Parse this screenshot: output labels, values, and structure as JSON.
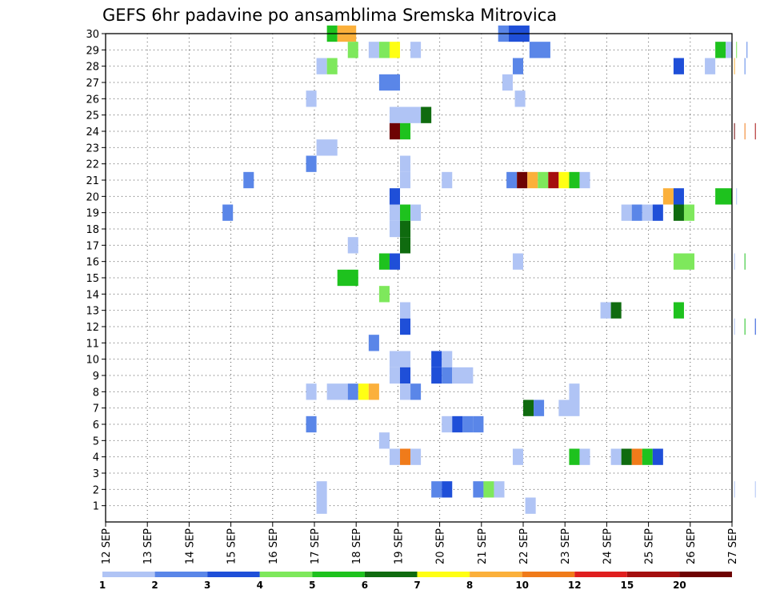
{
  "chart_data": {
    "type": "heatmap",
    "title": "GEFS 6hr padavine po ansamblima Sremska Mitrovica",
    "y_ticks": [
      "1",
      "2",
      "3",
      "4",
      "5",
      "6",
      "7",
      "8",
      "9",
      "10",
      "11",
      "12",
      "13",
      "14",
      "15",
      "16",
      "17",
      "18",
      "19",
      "20",
      "21",
      "22",
      "23",
      "24",
      "25",
      "26",
      "27",
      "28",
      "29",
      "30"
    ],
    "x_ticks": [
      "12 SEP",
      "13 SEP",
      "14 SEP",
      "15 SEP",
      "16 SEP",
      "17 SEP",
      "18 SEP",
      "19 SEP",
      "20 SEP",
      "21 SEP",
      "22 SEP",
      "23 SEP",
      "24 SEP",
      "25 SEP",
      "26 SEP",
      "27 SEP"
    ],
    "legend": {
      "labels": [
        "1",
        "2",
        "3",
        "4",
        "5",
        "6",
        "7",
        "8",
        "10",
        "12",
        "15",
        "20"
      ],
      "colors": [
        "#b0c4f5",
        "#5a86e8",
        "#1f4fd8",
        "#7ee85c",
        "#1ec21e",
        "#0f6b0f",
        "#ffff14",
        "#fbb03b",
        "#f07b1a",
        "#e01f1f",
        "#a50f0f",
        "#6e0303"
      ]
    },
    "grid": true,
    "cells": [
      {
        "member": 30,
        "x": 17.3,
        "w": 0.25,
        "v": 5
      },
      {
        "member": 30,
        "x": 17.55,
        "w": 0.45,
        "v": 8
      },
      {
        "member": 30,
        "x": 21.4,
        "w": 0.25,
        "v": 2
      },
      {
        "member": 30,
        "x": 21.65,
        "w": 0.5,
        "v": 3
      },
      {
        "member": 29,
        "x": 17.8,
        "w": 0.25,
        "v": 4
      },
      {
        "member": 29,
        "x": 18.3,
        "w": 0.25,
        "v": 1
      },
      {
        "member": 29,
        "x": 18.55,
        "w": 0.25,
        "v": 4
      },
      {
        "member": 29,
        "x": 18.8,
        "w": 0.25,
        "v": 7
      },
      {
        "member": 29,
        "x": 19.3,
        "w": 0.25,
        "v": 1
      },
      {
        "member": 29,
        "x": 22.15,
        "w": 0.5,
        "v": 2
      },
      {
        "member": 29,
        "x": 26.6,
        "w": 0.25,
        "v": 5
      },
      {
        "member": 29,
        "x": 26.85,
        "w": 0.25,
        "v": 1
      },
      {
        "member": 29,
        "x": 27.1,
        "w": 0.25,
        "v": 4
      },
      {
        "member": 29,
        "x": 27.35,
        "w": 0.1,
        "v": 2
      },
      {
        "member": 28,
        "x": 17.05,
        "w": 0.25,
        "v": 1
      },
      {
        "member": 28,
        "x": 17.3,
        "w": 0.25,
        "v": 4
      },
      {
        "member": 28,
        "x": 21.75,
        "w": 0.25,
        "v": 2
      },
      {
        "member": 28,
        "x": 25.6,
        "w": 0.25,
        "v": 3
      },
      {
        "member": 28,
        "x": 26.35,
        "w": 0.25,
        "v": 1
      },
      {
        "member": 28,
        "x": 27.05,
        "w": 0.25,
        "v": 8
      },
      {
        "member": 28,
        "x": 27.3,
        "w": 0.2,
        "v": 2
      },
      {
        "member": 27,
        "x": 18.55,
        "w": 0.5,
        "v": 2
      },
      {
        "member": 27,
        "x": 21.5,
        "w": 0.25,
        "v": 1
      },
      {
        "member": 26,
        "x": 16.8,
        "w": 0.25,
        "v": 1
      },
      {
        "member": 26,
        "x": 21.8,
        "w": 0.25,
        "v": 1
      },
      {
        "member": 25,
        "x": 18.8,
        "w": 0.75,
        "v": 1
      },
      {
        "member": 25,
        "x": 19.55,
        "w": 0.25,
        "v": 6
      },
      {
        "member": 24,
        "x": 18.8,
        "w": 0.25,
        "v": 20
      },
      {
        "member": 24,
        "x": 19.05,
        "w": 0.25,
        "v": 5
      },
      {
        "member": 24,
        "x": 27.05,
        "w": 0.25,
        "v": 20
      },
      {
        "member": 24,
        "x": 27.3,
        "w": 0.25,
        "v": 10
      },
      {
        "member": 24,
        "x": 27.55,
        "w": 0.4,
        "v": 15
      },
      {
        "member": 23,
        "x": 17.05,
        "w": 0.5,
        "v": 1
      },
      {
        "member": 22,
        "x": 16.8,
        "w": 0.25,
        "v": 2
      },
      {
        "member": 22,
        "x": 19.05,
        "w": 0.25,
        "v": 1
      },
      {
        "member": 21,
        "x": 15.3,
        "w": 0.25,
        "v": 2
      },
      {
        "member": 21,
        "x": 19.05,
        "w": 0.25,
        "v": 1
      },
      {
        "member": 21,
        "x": 20.05,
        "w": 0.25,
        "v": 1
      },
      {
        "member": 21,
        "x": 21.6,
        "w": 0.25,
        "v": 2
      },
      {
        "member": 21,
        "x": 21.85,
        "w": 0.25,
        "v": 20
      },
      {
        "member": 21,
        "x": 22.1,
        "w": 0.25,
        "v": 8
      },
      {
        "member": 21,
        "x": 22.35,
        "w": 0.25,
        "v": 4
      },
      {
        "member": 21,
        "x": 22.6,
        "w": 0.25,
        "v": 15
      },
      {
        "member": 21,
        "x": 22.85,
        "w": 0.25,
        "v": 7
      },
      {
        "member": 21,
        "x": 23.1,
        "w": 0.25,
        "v": 5
      },
      {
        "member": 21,
        "x": 23.35,
        "w": 0.25,
        "v": 1
      },
      {
        "member": 20,
        "x": 18.8,
        "w": 0.25,
        "v": 3
      },
      {
        "member": 20,
        "x": 25.35,
        "w": 0.25,
        "v": 8
      },
      {
        "member": 20,
        "x": 25.6,
        "w": 0.25,
        "v": 3
      },
      {
        "member": 20,
        "x": 26.6,
        "w": 0.5,
        "v": 5
      },
      {
        "member": 20,
        "x": 27.1,
        "w": 0.25,
        "v": 1
      },
      {
        "member": 19,
        "x": 14.8,
        "w": 0.25,
        "v": 2
      },
      {
        "member": 19,
        "x": 18.8,
        "w": 0.25,
        "v": 1
      },
      {
        "member": 19,
        "x": 19.05,
        "w": 0.25,
        "v": 5
      },
      {
        "member": 19,
        "x": 19.3,
        "w": 0.25,
        "v": 1
      },
      {
        "member": 19,
        "x": 24.35,
        "w": 0.25,
        "v": 1
      },
      {
        "member": 19,
        "x": 24.6,
        "w": 0.25,
        "v": 2
      },
      {
        "member": 19,
        "x": 24.85,
        "w": 0.25,
        "v": 1
      },
      {
        "member": 19,
        "x": 25.1,
        "w": 0.25,
        "v": 3
      },
      {
        "member": 19,
        "x": 25.6,
        "w": 0.25,
        "v": 6
      },
      {
        "member": 19,
        "x": 25.85,
        "w": 0.25,
        "v": 4
      },
      {
        "member": 18,
        "x": 18.8,
        "w": 0.25,
        "v": 1
      },
      {
        "member": 18,
        "x": 19.05,
        "w": 0.25,
        "v": 6
      },
      {
        "member": 17,
        "x": 17.8,
        "w": 0.25,
        "v": 1
      },
      {
        "member": 17,
        "x": 19.05,
        "w": 0.25,
        "v": 6
      },
      {
        "member": 16,
        "x": 18.55,
        "w": 0.25,
        "v": 5
      },
      {
        "member": 16,
        "x": 18.8,
        "w": 0.25,
        "v": 3
      },
      {
        "member": 16,
        "x": 21.75,
        "w": 0.25,
        "v": 1
      },
      {
        "member": 16,
        "x": 25.6,
        "w": 0.5,
        "v": 4
      },
      {
        "member": 16,
        "x": 27.05,
        "w": 0.25,
        "v": 1
      },
      {
        "member": 16,
        "x": 27.3,
        "w": 0.2,
        "v": 5
      },
      {
        "member": 15,
        "x": 17.55,
        "w": 0.5,
        "v": 5
      },
      {
        "member": 14,
        "x": 18.55,
        "w": 0.25,
        "v": 4
      },
      {
        "member": 13,
        "x": 19.05,
        "w": 0.25,
        "v": 1
      },
      {
        "member": 13,
        "x": 23.85,
        "w": 0.25,
        "v": 1
      },
      {
        "member": 13,
        "x": 24.1,
        "w": 0.25,
        "v": 6
      },
      {
        "member": 13,
        "x": 25.6,
        "w": 0.25,
        "v": 5
      },
      {
        "member": 12,
        "x": 19.05,
        "w": 0.25,
        "v": 3
      },
      {
        "member": 12,
        "x": 27.05,
        "w": 0.25,
        "v": 1
      },
      {
        "member": 12,
        "x": 27.3,
        "w": 0.25,
        "v": 5
      },
      {
        "member": 12,
        "x": 27.55,
        "w": 0.1,
        "v": 3
      },
      {
        "member": 11,
        "x": 18.3,
        "w": 0.25,
        "v": 2
      },
      {
        "member": 10,
        "x": 18.8,
        "w": 0.5,
        "v": 1
      },
      {
        "member": 10,
        "x": 19.8,
        "w": 0.25,
        "v": 3
      },
      {
        "member": 10,
        "x": 20.05,
        "w": 0.25,
        "v": 1
      },
      {
        "member": 9,
        "x": 18.8,
        "w": 0.25,
        "v": 1
      },
      {
        "member": 9,
        "x": 19.05,
        "w": 0.25,
        "v": 3
      },
      {
        "member": 9,
        "x": 19.8,
        "w": 0.25,
        "v": 3
      },
      {
        "member": 9,
        "x": 20.05,
        "w": 0.25,
        "v": 2
      },
      {
        "member": 9,
        "x": 20.3,
        "w": 0.5,
        "v": 1
      },
      {
        "member": 8,
        "x": 16.8,
        "w": 0.25,
        "v": 1
      },
      {
        "member": 8,
        "x": 17.3,
        "w": 0.5,
        "v": 1
      },
      {
        "member": 8,
        "x": 17.8,
        "w": 0.25,
        "v": 2
      },
      {
        "member": 8,
        "x": 18.05,
        "w": 0.25,
        "v": 7
      },
      {
        "member": 8,
        "x": 18.3,
        "w": 0.25,
        "v": 8
      },
      {
        "member": 8,
        "x": 19.05,
        "w": 0.25,
        "v": 1
      },
      {
        "member": 8,
        "x": 19.3,
        "w": 0.25,
        "v": 2
      },
      {
        "member": 8,
        "x": 23.1,
        "w": 0.25,
        "v": 1
      },
      {
        "member": 7,
        "x": 22.0,
        "w": 0.25,
        "v": 6
      },
      {
        "member": 7,
        "x": 22.25,
        "w": 0.25,
        "v": 2
      },
      {
        "member": 7,
        "x": 22.85,
        "w": 0.5,
        "v": 1
      },
      {
        "member": 6,
        "x": 16.8,
        "w": 0.25,
        "v": 2
      },
      {
        "member": 6,
        "x": 20.05,
        "w": 0.25,
        "v": 1
      },
      {
        "member": 6,
        "x": 20.3,
        "w": 0.25,
        "v": 3
      },
      {
        "member": 6,
        "x": 20.55,
        "w": 0.25,
        "v": 2
      },
      {
        "member": 6,
        "x": 20.8,
        "w": 0.25,
        "v": 2
      },
      {
        "member": 5,
        "x": 18.55,
        "w": 0.25,
        "v": 1
      },
      {
        "member": 4,
        "x": 18.8,
        "w": 0.25,
        "v": 1
      },
      {
        "member": 4,
        "x": 19.05,
        "w": 0.25,
        "v": 10
      },
      {
        "member": 4,
        "x": 19.3,
        "w": 0.25,
        "v": 1
      },
      {
        "member": 4,
        "x": 21.75,
        "w": 0.25,
        "v": 1
      },
      {
        "member": 4,
        "x": 23.1,
        "w": 0.25,
        "v": 5
      },
      {
        "member": 4,
        "x": 23.35,
        "w": 0.25,
        "v": 1
      },
      {
        "member": 4,
        "x": 24.1,
        "w": 0.25,
        "v": 1
      },
      {
        "member": 4,
        "x": 24.35,
        "w": 0.25,
        "v": 6
      },
      {
        "member": 4,
        "x": 24.6,
        "w": 0.25,
        "v": 10
      },
      {
        "member": 4,
        "x": 24.85,
        "w": 0.25,
        "v": 5
      },
      {
        "member": 4,
        "x": 25.1,
        "w": 0.25,
        "v": 3
      },
      {
        "member": 2,
        "x": 17.05,
        "w": 0.25,
        "v": 1
      },
      {
        "member": 2,
        "x": 19.8,
        "w": 0.25,
        "v": 2
      },
      {
        "member": 2,
        "x": 20.05,
        "w": 0.25,
        "v": 3
      },
      {
        "member": 2,
        "x": 20.8,
        "w": 0.25,
        "v": 2
      },
      {
        "member": 2,
        "x": 21.05,
        "w": 0.25,
        "v": 4
      },
      {
        "member": 2,
        "x": 21.3,
        "w": 0.25,
        "v": 1
      },
      {
        "member": 2,
        "x": 27.05,
        "w": 0.25,
        "v": 1
      },
      {
        "member": 2,
        "x": 27.55,
        "w": 0.1,
        "v": 1
      },
      {
        "member": 1,
        "x": 17.05,
        "w": 0.25,
        "v": 1
      },
      {
        "member": 1,
        "x": 22.05,
        "w": 0.25,
        "v": 1
      }
    ]
  }
}
